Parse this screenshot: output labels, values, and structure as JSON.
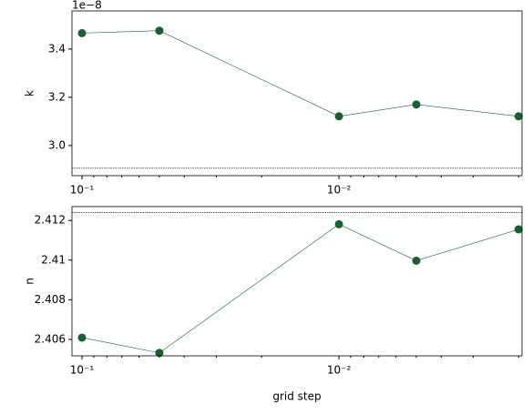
{
  "chart_data": [
    {
      "type": "line",
      "ylabel": "k",
      "offset_text": "1e−8",
      "x": [
        0.1,
        0.05,
        0.01,
        0.005,
        0.002
      ],
      "series": [
        {
          "color": "#1b5e34",
          "values": [
            3.466,
            3.476,
            3.121,
            3.17,
            3.121
          ]
        }
      ],
      "xscale": "log",
      "xlim": [
        0.1094,
        0.00194
      ],
      "xticks": [
        {
          "value": 0.1,
          "label": "10⁻¹"
        },
        {
          "value": 0.01,
          "label": "10⁻²"
        }
      ],
      "xminorticks": [
        0.09,
        0.08,
        0.07,
        0.06,
        0.05,
        0.04,
        0.03,
        0.02,
        0.009,
        0.008,
        0.007,
        0.006,
        0.005,
        0.004,
        0.003,
        0.002
      ],
      "ylim": [
        2.875,
        3.558
      ],
      "yticks": [
        {
          "value": 3.0,
          "label": "3.0"
        },
        {
          "value": 3.2,
          "label": "3.2"
        },
        {
          "value": 3.4,
          "label": "3.4"
        }
      ],
      "reference_line": 2.906
    },
    {
      "type": "line",
      "ylabel": "n",
      "xlabel": "grid step",
      "x": [
        0.1,
        0.05,
        0.01,
        0.005,
        0.002
      ],
      "series": [
        {
          "color": "#1b5e34",
          "values": [
            2.40609,
            2.40532,
            2.41181,
            2.40997,
            2.41155
          ]
        }
      ],
      "xscale": "log",
      "xlim": [
        0.1094,
        0.00194
      ],
      "xticks": [
        {
          "value": 0.1,
          "label": "10⁻¹"
        },
        {
          "value": 0.01,
          "label": "10⁻²"
        }
      ],
      "xminorticks": [
        0.09,
        0.08,
        0.07,
        0.06,
        0.05,
        0.04,
        0.03,
        0.02,
        0.009,
        0.008,
        0.007,
        0.006,
        0.005,
        0.004,
        0.003,
        0.002
      ],
      "ylim": [
        2.40517,
        2.4127
      ],
      "yticks": [
        2.406,
        2.408,
        2.41,
        2.412
      ],
      "reference_line": 2.4124
    }
  ]
}
